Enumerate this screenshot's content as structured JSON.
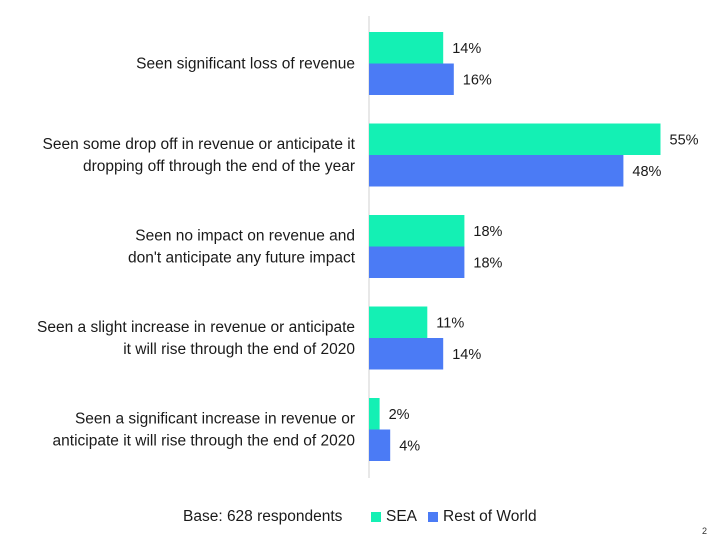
{
  "chart_data": {
    "type": "bar",
    "orientation": "horizontal",
    "categories": [
      "Seen significant loss of revenue",
      "Seen some drop off in revenue or anticipate it dropping off through the end of the year",
      "Seen no impact on revenue and don't anticipate any future impact",
      "Seen a slight increase in revenue or anticipate it will rise through the end of 2020",
      "Seen a significant increase in revenue or anticipate it will rise through the end of 2020"
    ],
    "category_lines": [
      [
        "Seen significant loss of revenue"
      ],
      [
        "Seen some drop off in revenue or anticipate it",
        "dropping off through the end of the year"
      ],
      [
        "Seen no impact on revenue and",
        "don't anticipate any future impact"
      ],
      [
        "Seen a slight increase in revenue or anticipate",
        "it will rise through the end of 2020"
      ],
      [
        "Seen a significant increase in revenue or",
        "anticipate it will rise through the end of 2020"
      ]
    ],
    "series": [
      {
        "name": "SEA",
        "values": [
          14,
          55,
          18,
          11,
          2
        ],
        "color": "#14F0B4"
      },
      {
        "name": "Rest of World",
        "values": [
          16,
          48,
          18,
          14,
          4
        ],
        "color": "#4B7BF5"
      }
    ],
    "value_suffix": "%",
    "xlim": [
      0,
      60
    ],
    "grid": false,
    "legend_position": "bottom"
  },
  "footer": {
    "base_note": "Base: 628 respondents",
    "page_number": "2"
  }
}
